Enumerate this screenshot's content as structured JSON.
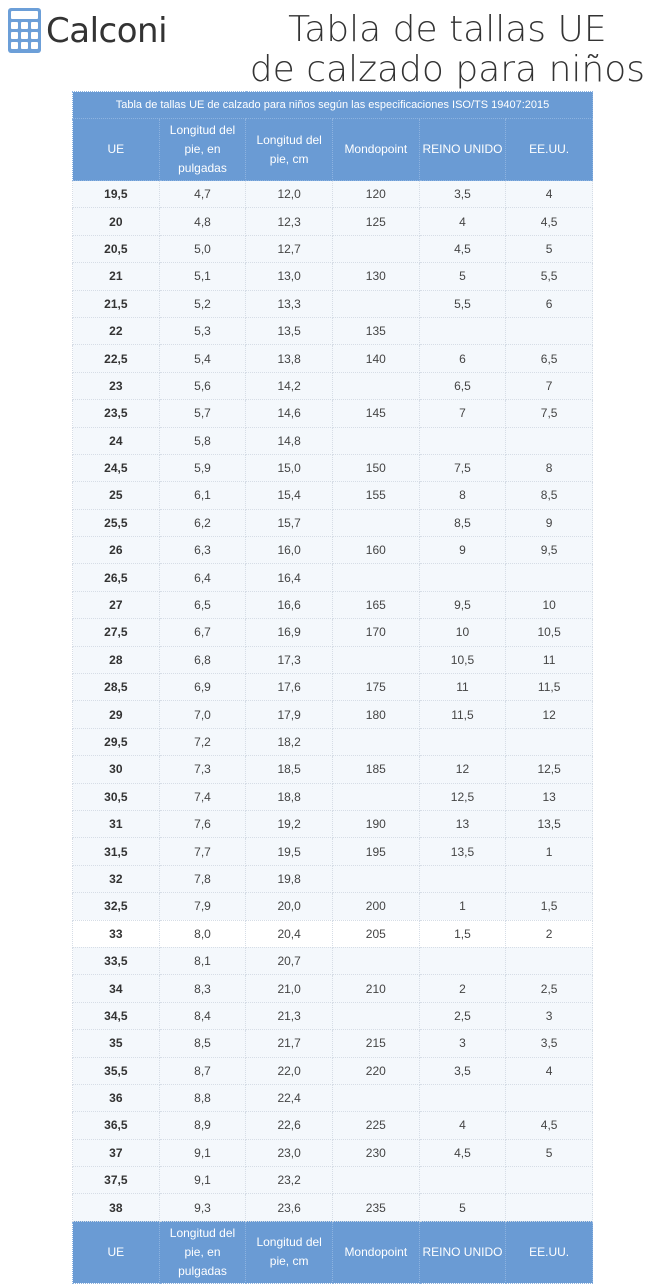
{
  "brand": {
    "name": "Calconi",
    "icon": "calculator-icon",
    "color": "#6c9fd8"
  },
  "title": {
    "line1": "Tabla de tallas UE",
    "line2": "de calzado para niños"
  },
  "table": {
    "caption": "Tabla de tallas UE de calzado para niños según las especificaciones ISO/TS 19407:2015",
    "header_color": "#6a9bd4",
    "columns": [
      "UE",
      "Longitud del pie, en pulgadas",
      "Longitud del pie, cm",
      "Mondopoint",
      "REINO UNIDO",
      "EE.UU."
    ],
    "rows": [
      [
        "19,5",
        "4,7",
        "12,0",
        "120",
        "3,5",
        "4"
      ],
      [
        "20",
        "4,8",
        "12,3",
        "125",
        "4",
        "4,5"
      ],
      [
        "20,5",
        "5,0",
        "12,7",
        "",
        "4,5",
        "5"
      ],
      [
        "21",
        "5,1",
        "13,0",
        "130",
        "5",
        "5,5"
      ],
      [
        "21,5",
        "5,2",
        "13,3",
        "",
        "5,5",
        "6"
      ],
      [
        "22",
        "5,3",
        "13,5",
        "135",
        "",
        ""
      ],
      [
        "22,5",
        "5,4",
        "13,8",
        "140",
        "6",
        "6,5"
      ],
      [
        "23",
        "5,6",
        "14,2",
        "",
        "6,5",
        "7"
      ],
      [
        "23,5",
        "5,7",
        "14,6",
        "145",
        "7",
        "7,5"
      ],
      [
        "24",
        "5,8",
        "14,8",
        "",
        "",
        ""
      ],
      [
        "24,5",
        "5,9",
        "15,0",
        "150",
        "7,5",
        "8"
      ],
      [
        "25",
        "6,1",
        "15,4",
        "155",
        "8",
        "8,5"
      ],
      [
        "25,5",
        "6,2",
        "15,7",
        "",
        "8,5",
        "9"
      ],
      [
        "26",
        "6,3",
        "16,0",
        "160",
        "9",
        "9,5"
      ],
      [
        "26,5",
        "6,4",
        "16,4",
        "",
        "",
        ""
      ],
      [
        "27",
        "6,5",
        "16,6",
        "165",
        "9,5",
        "10"
      ],
      [
        "27,5",
        "6,7",
        "16,9",
        "170",
        "10",
        "10,5"
      ],
      [
        "28",
        "6,8",
        "17,3",
        "",
        "10,5",
        "11"
      ],
      [
        "28,5",
        "6,9",
        "17,6",
        "175",
        "11",
        "11,5"
      ],
      [
        "29",
        "7,0",
        "17,9",
        "180",
        "11,5",
        "12"
      ],
      [
        "29,5",
        "7,2",
        "18,2",
        "",
        "",
        ""
      ],
      [
        "30",
        "7,3",
        "18,5",
        "185",
        "12",
        "12,5"
      ],
      [
        "30,5",
        "7,4",
        "18,8",
        "",
        "12,5",
        "13"
      ],
      [
        "31",
        "7,6",
        "19,2",
        "190",
        "13",
        "13,5"
      ],
      [
        "31,5",
        "7,7",
        "19,5",
        "195",
        "13,5",
        "1"
      ],
      [
        "32",
        "7,8",
        "19,8",
        "",
        "",
        ""
      ],
      [
        "32,5",
        "7,9",
        "20,0",
        "200",
        "1",
        "1,5"
      ],
      [
        "33",
        "8,0",
        "20,4",
        "205",
        "1,5",
        "2"
      ],
      [
        "33,5",
        "8,1",
        "20,7",
        "",
        "",
        ""
      ],
      [
        "34",
        "8,3",
        "21,0",
        "210",
        "2",
        "2,5"
      ],
      [
        "34,5",
        "8,4",
        "21,3",
        "",
        "2,5",
        "3"
      ],
      [
        "35",
        "8,5",
        "21,7",
        "215",
        "3",
        "3,5"
      ],
      [
        "35,5",
        "8,7",
        "22,0",
        "220",
        "3,5",
        "4"
      ],
      [
        "36",
        "8,8",
        "22,4",
        "",
        "",
        ""
      ],
      [
        "36,5",
        "8,9",
        "22,6",
        "225",
        "4",
        "4,5"
      ],
      [
        "37",
        "9,1",
        "23,0",
        "230",
        "4,5",
        "5"
      ],
      [
        "37,5",
        "9,1",
        "23,2",
        "",
        "",
        ""
      ],
      [
        "38",
        "9,3",
        "23,6",
        "235",
        "5",
        ""
      ]
    ]
  }
}
